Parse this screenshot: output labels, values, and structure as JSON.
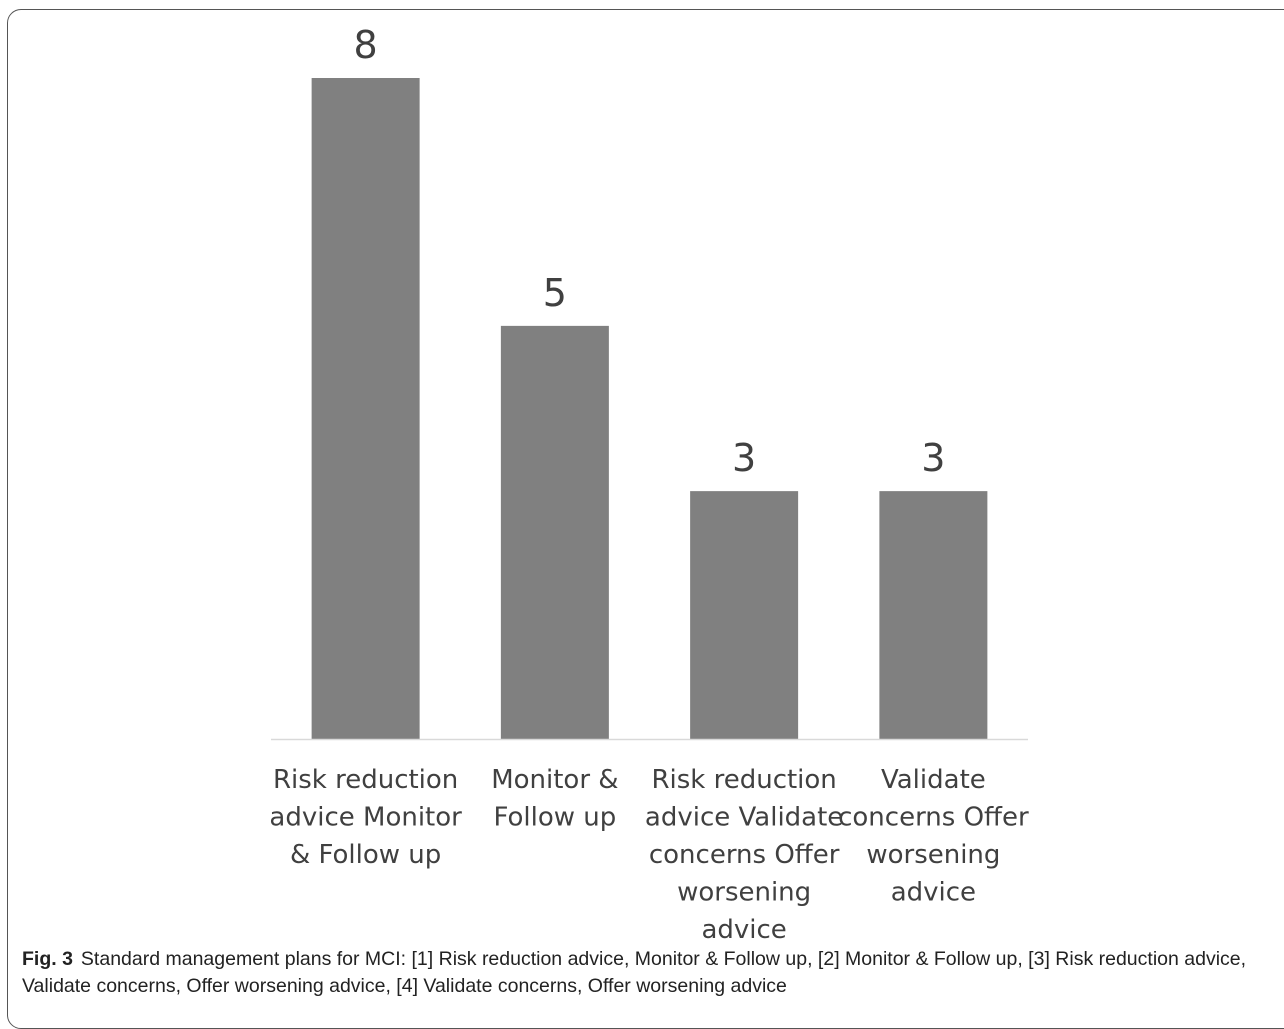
{
  "chart_data": {
    "type": "bar",
    "categories": [
      "Risk reduction advice Monitor & Follow up",
      "Monitor & Follow up",
      "Risk reduction advice Validate concerns Offer worsening advice",
      "Validate concerns Offer worsening advice"
    ],
    "category_lines": [
      [
        "Risk reduction",
        "advice Monitor",
        "& Follow up"
      ],
      [
        "Monitor &",
        "Follow up"
      ],
      [
        "Risk reduction",
        "advice Validate",
        "concerns Offer",
        "worsening",
        "advice"
      ],
      [
        "Validate",
        "concerns Offer",
        "worsening",
        "advice"
      ]
    ],
    "values": [
      8,
      5,
      3,
      3
    ],
    "data_labels": [
      "8",
      "5",
      "3",
      "3"
    ],
    "bar_color": "#808080",
    "axis_color": "#d9d9d9",
    "text_color": "#404040",
    "ylim": [
      0,
      8
    ],
    "grid": false,
    "legend": "none"
  },
  "caption": {
    "label": "Fig. 3",
    "text": "Standard management plans for MCI: [1] Risk reduction advice, Monitor & Follow up, [2] Monitor & Follow up, [3] Risk reduction advice, Validate concerns, Offer worsening advice, [4] Validate concerns, Offer worsening advice"
  }
}
